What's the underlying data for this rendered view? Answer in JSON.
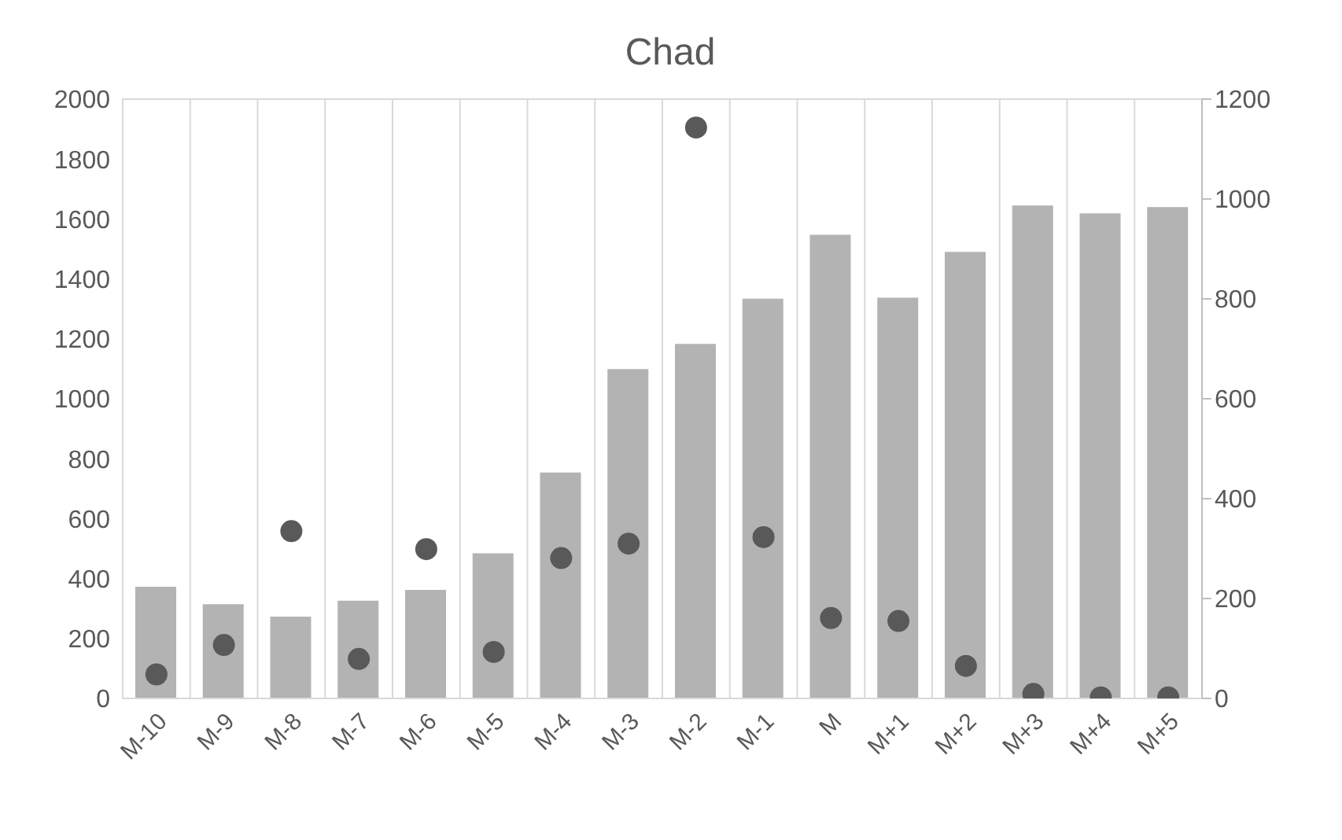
{
  "chart_data": {
    "type": "bar",
    "title": "Chad",
    "categories": [
      "M-10",
      "M-9",
      "M-8",
      "M-7",
      "M-6",
      "M-5",
      "M-4",
      "M-3",
      "M-2",
      "M-1",
      "M",
      "M+1",
      "M+2",
      "M+3",
      "M+4",
      "M+5"
    ],
    "series": [
      {
        "color": "#b3b3b3",
        "values": [
          373,
          314,
          273,
          326,
          362,
          484,
          754,
          1099,
          1183,
          1334,
          1547,
          1337,
          1490,
          1645,
          1619,
          1640
        ]
      },
      {
        "type": "scatter",
        "axis": "y2",
        "color": "#595959",
        "values": [
          48,
          107,
          335,
          79,
          299,
          93,
          281,
          310,
          1143,
          323,
          161,
          155,
          65,
          9,
          2,
          2
        ]
      }
    ],
    "ylim": [
      0,
      2000
    ],
    "yticks": [
      0,
      200,
      400,
      600,
      800,
      1000,
      1200,
      1400,
      1600,
      1800,
      2000
    ],
    "y2lim": [
      0,
      1200
    ],
    "y2ticks": [
      0,
      200,
      400,
      600,
      800,
      1000,
      1200
    ],
    "grid": true,
    "legend": false,
    "marker": "circle"
  }
}
